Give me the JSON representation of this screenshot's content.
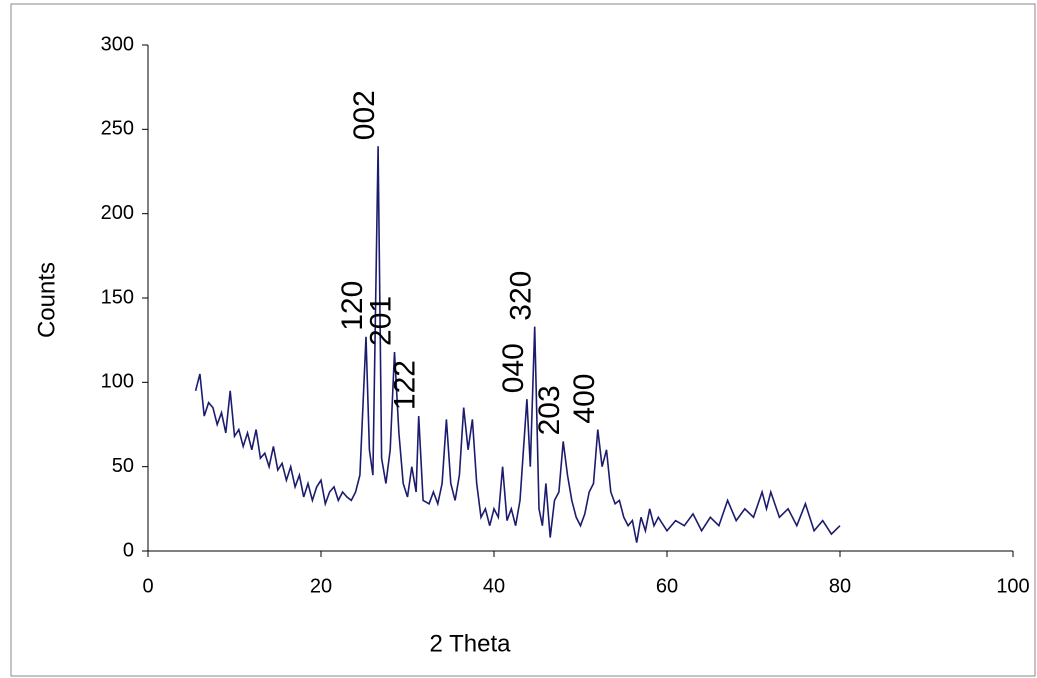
{
  "chart_data": {
    "type": "line",
    "xlabel": "2 Theta",
    "ylabel": "Counts",
    "color": "#1c1c6e",
    "x": [
      5.5,
      6,
      6.5,
      7,
      7.5,
      8,
      8.5,
      9,
      9.5,
      10,
      10.5,
      11,
      11.5,
      12,
      12.5,
      13,
      13.5,
      14,
      14.5,
      15,
      15.5,
      16,
      16.5,
      17,
      17.5,
      18,
      18.5,
      19,
      19.5,
      20,
      20.5,
      21,
      21.5,
      22,
      22.5,
      23,
      23.5,
      24,
      24.5,
      25.2,
      25.6,
      26,
      26.6,
      27,
      27.5,
      28,
      28.5,
      29,
      29.5,
      30,
      30.5,
      31,
      31.3,
      31.8,
      32.5,
      33,
      33.5,
      34,
      34.5,
      35,
      35.5,
      36,
      36.5,
      37,
      37.5,
      38,
      38.5,
      39,
      39.5,
      40,
      40.5,
      41,
      41.5,
      42,
      42.5,
      43,
      43.8,
      44.2,
      44.7,
      45.2,
      45.6,
      46,
      46.5,
      47,
      47.5,
      48,
      48.5,
      49,
      49.5,
      50,
      50.5,
      51,
      51.5,
      52,
      52.5,
      53,
      53.5,
      54,
      54.5,
      55,
      55.5,
      56,
      56.5,
      57,
      57.5,
      58,
      58.5,
      59,
      60,
      61,
      62,
      63,
      64,
      65,
      66,
      67,
      68,
      69,
      70,
      71,
      71.5,
      72,
      73,
      74,
      75,
      76,
      77,
      78,
      79,
      80
    ],
    "values": [
      95,
      105,
      80,
      88,
      85,
      75,
      82,
      70,
      95,
      68,
      72,
      62,
      70,
      60,
      72,
      55,
      58,
      50,
      62,
      48,
      52,
      42,
      50,
      38,
      45,
      32,
      40,
      30,
      38,
      42,
      28,
      35,
      38,
      30,
      35,
      32,
      30,
      35,
      45,
      127,
      60,
      45,
      240,
      55,
      40,
      60,
      118,
      70,
      40,
      32,
      50,
      35,
      80,
      30,
      28,
      35,
      28,
      40,
      78,
      40,
      30,
      45,
      85,
      60,
      78,
      40,
      20,
      25,
      15,
      25,
      20,
      50,
      18,
      25,
      15,
      30,
      90,
      50,
      133,
      25,
      15,
      40,
      8,
      30,
      35,
      65,
      45,
      30,
      20,
      15,
      22,
      35,
      40,
      72,
      50,
      60,
      35,
      28,
      30,
      20,
      15,
      18,
      5,
      20,
      12,
      25,
      15,
      20,
      12,
      18,
      15,
      22,
      12,
      20,
      15,
      30,
      18,
      25,
      20,
      35,
      25,
      35,
      20,
      25,
      15,
      28,
      12,
      18,
      10,
      15
    ],
    "xlim": [
      0,
      100
    ],
    "xticks": [
      0,
      20,
      40,
      60,
      80,
      100
    ],
    "ylim": [
      0,
      300
    ],
    "yticks": [
      0,
      50,
      100,
      150,
      200,
      250,
      300
    ],
    "annotations": [
      {
        "text": "120",
        "x": 25.2,
        "y": 127
      },
      {
        "text": "002",
        "x": 26.6,
        "y": 240
      },
      {
        "text": "201",
        "x": 28.5,
        "y": 118
      },
      {
        "text": "122",
        "x": 31.3,
        "y": 80
      },
      {
        "text": "040",
        "x": 43.8,
        "y": 90
      },
      {
        "text": "320",
        "x": 44.7,
        "y": 133
      },
      {
        "text": "203",
        "x": 48,
        "y": 65
      },
      {
        "text": "400",
        "x": 52,
        "y": 72
      }
    ]
  }
}
